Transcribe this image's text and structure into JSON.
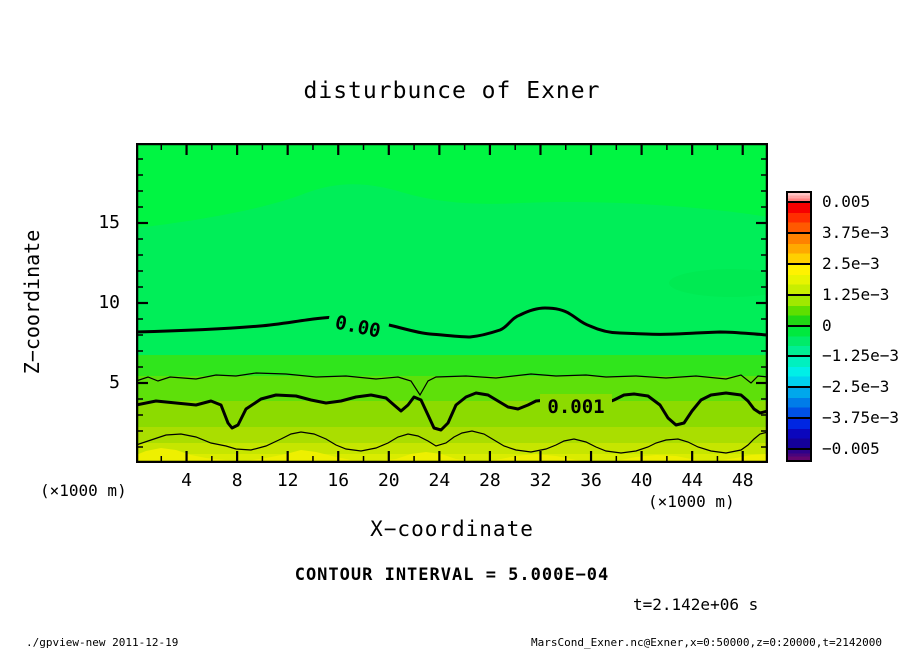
{
  "title": "disturbunce of Exner",
  "axes": {
    "x": {
      "label": "X−coordinate",
      "unit": "(×1000 m)",
      "range_km": [
        0,
        50
      ],
      "major_ticks": [
        4,
        8,
        12,
        16,
        20,
        24,
        28,
        32,
        36,
        40,
        44,
        48
      ],
      "minor_tick_step": 2
    },
    "y": {
      "label": "Z−coordinate",
      "unit": "(×1000 m)",
      "range_km": [
        0,
        20
      ],
      "major_ticks": [
        5,
        10,
        15
      ],
      "minor_tick_step": 1
    }
  },
  "annotations": {
    "contour_interval": "CONTOUR INTERVAL = 5.000E−04",
    "time": "t=2.142e+06 s",
    "contour_label_zero": "0.00",
    "contour_label_one": "0.001"
  },
  "footer": {
    "left": "./gpview-new  2011-12-19",
    "right": "MarsCond_Exner.nc@Exner,x=0:50000,z=0:20000,t=2142000"
  },
  "colorbar": {
    "labels": [
      "0.005",
      "3.75e−3",
      "2.5e−3",
      "1.25e−3",
      "0",
      "−1.25e−3",
      "−2.5e−3",
      "−3.75e−3",
      "−0.005"
    ],
    "cells": [
      {
        "name": "above-0.005",
        "stripes": [
          "#ffc6c6",
          "#ffa4a4",
          "#ff7f7f"
        ],
        "cap": true
      },
      {
        "name": "0.005..3.75e-3",
        "stripes": [
          "#f70000",
          "#ff2e00",
          "#ff5900"
        ]
      },
      {
        "name": "3.75e-3..2.5e-3",
        "stripes": [
          "#ff8200",
          "#ffa900",
          "#ffd000"
        ]
      },
      {
        "name": "2.5e-3..1.25e-3",
        "stripes": [
          "#fff200",
          "#e8f400",
          "#c8ee00"
        ]
      },
      {
        "name": "1.25e-3..0",
        "stripes": [
          "#a0e800",
          "#5fdf00",
          "#20d814"
        ]
      },
      {
        "name": "0..-1.25e-3",
        "stripes": [
          "#00e93e",
          "#00eb69",
          "#00ee94"
        ]
      },
      {
        "name": "-1.25e-3..-2.5e-3",
        "stripes": [
          "#00f0bf",
          "#00efe7",
          "#00d2ef"
        ]
      },
      {
        "name": "-2.5e-3..-3.75e-3",
        "stripes": [
          "#00a7ec",
          "#007ce9",
          "#0051e6"
        ]
      },
      {
        "name": "-3.75e-3..-0.005",
        "stripes": [
          "#0026e2",
          "#0b06bd",
          "#140099"
        ]
      },
      {
        "name": "below--0.005",
        "stripes": [
          "#2e0289",
          "#49047c",
          "#64066f"
        ],
        "cap": true
      }
    ]
  },
  "chart_data": {
    "type": "heatmap",
    "subtype": "filled-contour-with-lines",
    "title": "disturbunce of Exner",
    "xlabel": "X−coordinate (×1000 m)",
    "ylabel": "Z−coordinate (×1000 m)",
    "xlim_km": [
      0,
      50
    ],
    "ylim_km": [
      0,
      20
    ],
    "contour_interval": 0.0005,
    "time_seconds": 2142000,
    "colorbar_levels": [
      0.005,
      0.00375,
      0.0025,
      0.00125,
      0,
      -0.00125,
      -0.0025,
      -0.00375,
      -0.005
    ],
    "field_summary": "Exner-function disturbance: near 0 (green) above z≈8 km, increasing toward the surface to ≈0.002 (yellow) at z≈0; faint negative patches aloft",
    "contour_lines": [
      {
        "level": 0.0,
        "style": "thick",
        "label": "0.00",
        "x_km": [
          0,
          5,
          10,
          15,
          20,
          25,
          30,
          32.5,
          35,
          40,
          45,
          50
        ],
        "z_km": [
          8.2,
          8.3,
          8.6,
          9.1,
          8.8,
          7.9,
          8.3,
          9.7,
          9.2,
          8.1,
          8.1,
          8.0
        ]
      },
      {
        "level": 0.0005,
        "style": "thin",
        "x_km": [
          0,
          5,
          10,
          15,
          20,
          22.5,
          25,
          30,
          35,
          40,
          45,
          50
        ],
        "z_km": [
          5.2,
          5.5,
          5.6,
          5.4,
          5.3,
          4.1,
          5.4,
          5.6,
          5.4,
          5.4,
          5.3,
          5.4
        ]
      },
      {
        "level": 0.001,
        "style": "thick",
        "label": "0.001",
        "x_km": [
          0,
          5,
          7.5,
          10,
          15,
          20,
          24,
          25,
          30,
          35,
          40,
          43,
          45,
          50
        ],
        "z_km": [
          3.6,
          3.7,
          2.2,
          4.0,
          3.8,
          4.1,
          2.1,
          3.5,
          3.4,
          3.6,
          4.3,
          2.4,
          4.1,
          3.3
        ]
      },
      {
        "level": 0.0015,
        "style": "thin",
        "x_km": [
          0,
          5,
          10,
          13,
          18,
          22,
          26,
          30,
          34,
          38,
          42,
          46,
          50
        ],
        "z_km": [
          1.1,
          1.0,
          1.8,
          0.8,
          1.8,
          1.7,
          0.7,
          1.9,
          0.7,
          1.5,
          1.3,
          0.7,
          1.9
        ]
      }
    ],
    "legend_position": "right-colorbar",
    "grid": false
  }
}
